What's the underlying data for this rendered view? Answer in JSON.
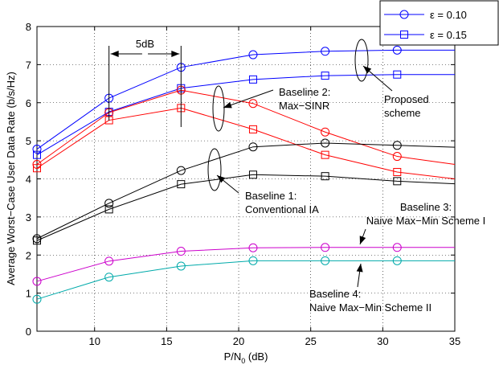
{
  "chart_data": {
    "type": "line",
    "xlabel": "P/N",
    "xlabel_sub": "0",
    "xlabel_unit": " (dB)",
    "ylabel": "Average Worst−Case User Data Rate (b/s/Hz)",
    "xlim": [
      6,
      35
    ],
    "ylim": [
      0,
      8
    ],
    "x_ticks": [
      10,
      15,
      20,
      25,
      30,
      35
    ],
    "y_ticks": [
      0,
      1,
      2,
      3,
      4,
      5,
      6,
      7,
      8
    ],
    "grid": true,
    "legend_position": "top-right",
    "legend": [
      {
        "label": "ε = 0.10",
        "marker": "circle",
        "color": "#0000ff"
      },
      {
        "label": "ε = 0.15",
        "marker": "square",
        "color": "#0000ff"
      }
    ],
    "series": [
      {
        "group": "Proposed",
        "color": "#0000ff",
        "marker": "circle",
        "x": [
          6,
          11,
          16,
          21,
          26,
          31,
          35
        ],
        "y": [
          4.78,
          6.12,
          6.93,
          7.26,
          7.35,
          7.38,
          7.38
        ]
      },
      {
        "group": "Proposed",
        "color": "#0000ff",
        "marker": "square",
        "x": [
          6,
          11,
          16,
          21,
          26,
          31,
          35
        ],
        "y": [
          4.63,
          5.76,
          6.38,
          6.61,
          6.71,
          6.74,
          6.74
        ]
      },
      {
        "group": "Baseline 2",
        "color": "#ff0000",
        "marker": "circle",
        "x": [
          6,
          11,
          16,
          21,
          26,
          31,
          35
        ],
        "y": [
          4.38,
          5.74,
          6.33,
          5.98,
          5.23,
          4.59,
          4.38
        ]
      },
      {
        "group": "Baseline 2",
        "color": "#ff0000",
        "marker": "square",
        "x": [
          6,
          11,
          16,
          21,
          26,
          31,
          35
        ],
        "y": [
          4.28,
          5.54,
          5.86,
          5.3,
          4.63,
          4.18,
          4.0
        ]
      },
      {
        "group": "Baseline 1",
        "color": "#000000",
        "marker": "circle",
        "x": [
          6,
          11,
          16,
          21,
          26,
          31,
          35
        ],
        "y": [
          2.43,
          3.36,
          4.22,
          4.84,
          4.94,
          4.88,
          4.83
        ]
      },
      {
        "group": "Baseline 1",
        "color": "#000000",
        "marker": "square",
        "x": [
          6,
          11,
          16,
          21,
          26,
          31,
          35
        ],
        "y": [
          2.38,
          3.2,
          3.86,
          4.11,
          4.07,
          3.94,
          3.87
        ]
      },
      {
        "group": "Baseline 3",
        "color": "#cc00cc",
        "marker": "circle",
        "x": [
          6,
          11,
          16,
          21,
          26,
          31,
          35
        ],
        "y": [
          1.31,
          1.84,
          2.1,
          2.19,
          2.2,
          2.2,
          2.2
        ]
      },
      {
        "group": "Baseline 4",
        "color": "#00aaaa",
        "marker": "circle",
        "x": [
          6,
          11,
          16,
          21,
          26,
          31,
          35
        ],
        "y": [
          0.84,
          1.42,
          1.71,
          1.85,
          1.85,
          1.85,
          1.85
        ]
      }
    ],
    "annotations": {
      "gap_label": "5dB",
      "proposed": [
        "Proposed",
        "scheme"
      ],
      "baseline2": [
        "Baseline 2:",
        "Max−SINR"
      ],
      "baseline1": [
        "Baseline 1:",
        "Conventional IA"
      ],
      "baseline3": [
        "Baseline 3:",
        "Naive Max−Min Scheme I"
      ],
      "baseline4": [
        "Baseline 4:",
        "Naive Max−Min Scheme II"
      ]
    }
  }
}
